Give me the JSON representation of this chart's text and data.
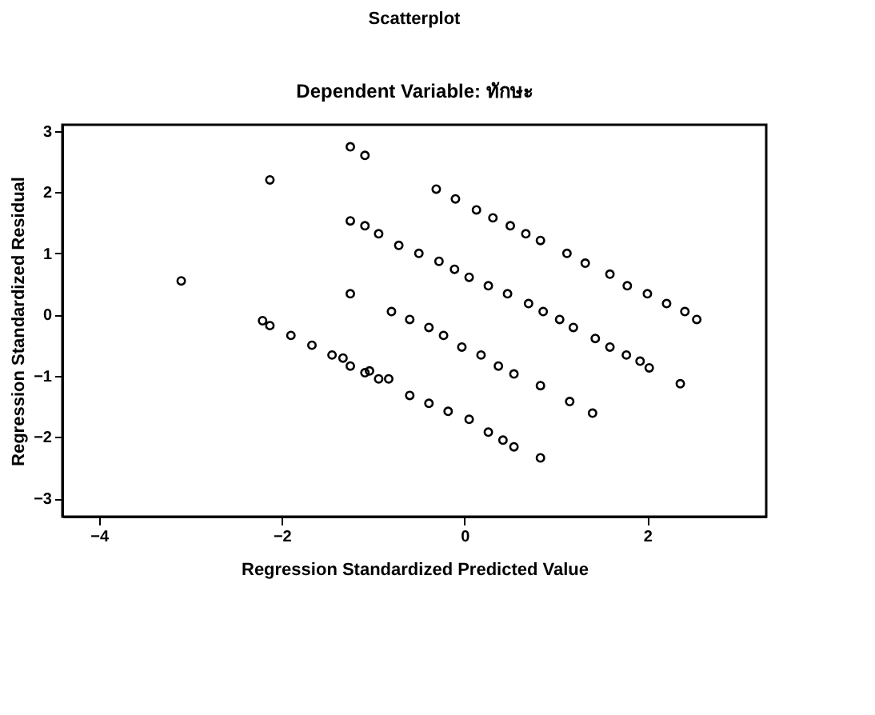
{
  "chart_data": {
    "type": "scatter",
    "title": "Scatterplot",
    "subtitle": "Dependent Variable: ทักษะ",
    "xlabel": "Regression Standardized Predicted Value",
    "ylabel": "Regression Standardized Residual",
    "x": [
      -3.1,
      -2.13,
      -1.25,
      -1.09,
      -1.25,
      -1.09,
      -0.94,
      -1.25,
      -2.21,
      -2.13,
      -1.9,
      -1.67,
      -1.45,
      -1.33,
      -1.25,
      -1.09,
      -0.94,
      -0.31,
      -0.1,
      0.13,
      0.31,
      0.5,
      0.67,
      0.83,
      1.12,
      1.32,
      1.59,
      1.78,
      2.0,
      2.21,
      2.41,
      2.54,
      -0.72,
      -0.5,
      -0.28,
      -0.11,
      0.05,
      0.26,
      0.47,
      0.7,
      0.86,
      1.04,
      1.19,
      1.43,
      1.59,
      1.77,
      1.92,
      2.02,
      2.36,
      -0.8,
      -0.6,
      -0.39,
      -0.23,
      -0.03,
      0.18,
      0.37,
      0.54,
      0.83,
      1.15,
      1.4,
      -1.04,
      -0.83,
      -0.6,
      -0.39,
      -0.18,
      0.05,
      0.26,
      0.42,
      0.54,
      0.83
    ],
    "values": [
      0.55,
      2.2,
      2.74,
      2.6,
      1.53,
      1.45,
      1.32,
      0.34,
      -0.1,
      -0.18,
      -0.34,
      -0.5,
      -0.66,
      -0.71,
      -0.84,
      -0.95,
      -1.05,
      2.05,
      1.89,
      1.71,
      1.58,
      1.45,
      1.32,
      1.21,
      1.0,
      0.84,
      0.66,
      0.47,
      0.34,
      0.18,
      0.05,
      -0.08,
      1.13,
      1.0,
      0.87,
      0.74,
      0.61,
      0.47,
      0.34,
      0.18,
      0.05,
      -0.08,
      -0.21,
      -0.39,
      -0.53,
      -0.66,
      -0.76,
      -0.87,
      -1.13,
      0.05,
      -0.08,
      -0.21,
      -0.34,
      -0.53,
      -0.66,
      -0.84,
      -0.97,
      -1.16,
      -1.42,
      -1.61,
      -0.92,
      -1.05,
      -1.32,
      -1.45,
      -1.58,
      -1.71,
      -1.92,
      -2.05,
      -2.16,
      -2.34
    ],
    "color": "#000000",
    "marker": "circle",
    "xlim": [
      -4.4,
      3.3
    ],
    "xticks": [
      -4,
      -2,
      0,
      2
    ],
    "ylim": [
      -3.3,
      3.1
    ],
    "yticks": [
      -3,
      -2,
      -1,
      0,
      1,
      2,
      3
    ],
    "grid": false
  }
}
